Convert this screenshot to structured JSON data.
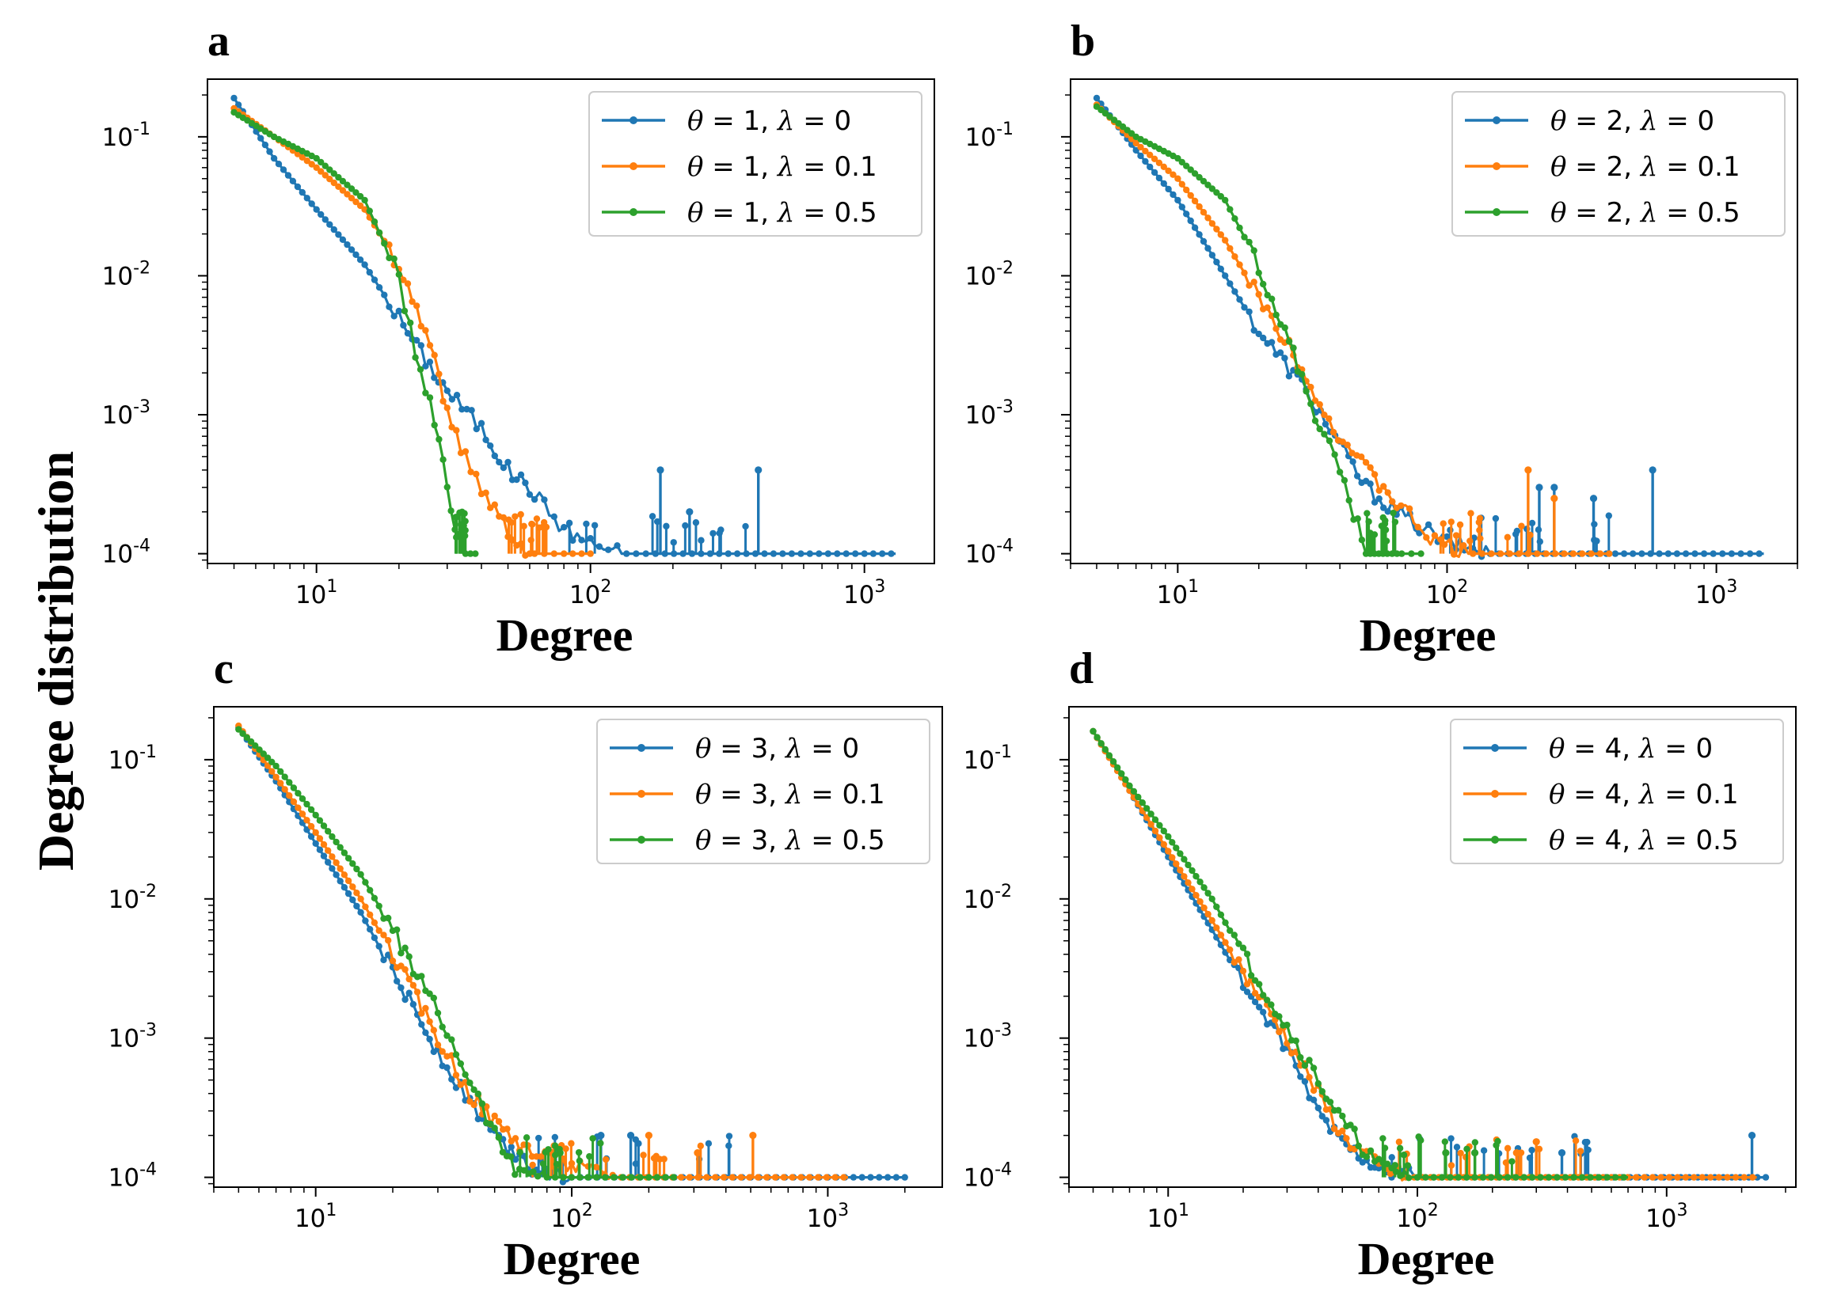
{
  "figure": {
    "ylabel": "Degree distribution",
    "colors": {
      "blue": "#1f77b4",
      "orange": "#ff7f0e",
      "green": "#2ca02c"
    }
  },
  "chart_data": [
    {
      "type": "line",
      "panel": "a",
      "xlabel": "Degree",
      "ylabel": "",
      "xscale": "log",
      "yscale": "log",
      "xlim": [
        4,
        1800
      ],
      "ylim": [
        8.5e-05,
        0.26
      ],
      "xticks": [
        "10^1",
        "10^2",
        "10^3"
      ],
      "yticks": [
        "10^-1",
        "10^-2",
        "10^-3",
        "10^-4"
      ],
      "legend_position": "top-right",
      "series": [
        {
          "theta": "1",
          "lambda": "0",
          "color": "#1f77b4",
          "points": [
            [
              5,
              0.19
            ],
            [
              7,
              0.07
            ],
            [
              10,
              0.03
            ],
            [
              15,
              0.012
            ],
            [
              20,
              0.005
            ],
            [
              25,
              0.0025
            ],
            [
              30,
              0.0015
            ],
            [
              40,
              0.0008
            ],
            [
              50,
              0.0004
            ],
            [
              60,
              0.0003
            ],
            [
              80,
              0.00015
            ],
            [
              100,
              0.00012
            ],
            [
              130,
              0.0001
            ],
            [
              180,
              0.0001
            ],
            [
              400,
              0.0001
            ],
            [
              1000,
              0.0001
            ],
            [
              1300,
              0.0001
            ]
          ],
          "spikes": [
            [
              180,
              0.0004
            ],
            [
              410,
              0.0004
            ],
            [
              230,
              0.0002
            ]
          ]
        },
        {
          "theta": "1",
          "lambda": "0.1",
          "color": "#ff7f0e",
          "points": [
            [
              5,
              0.16
            ],
            [
              7,
              0.1
            ],
            [
              10,
              0.06
            ],
            [
              15,
              0.03
            ],
            [
              20,
              0.012
            ],
            [
              25,
              0.004
            ],
            [
              28,
              0.002
            ],
            [
              30,
              0.001
            ],
            [
              35,
              0.0005
            ],
            [
              40,
              0.0003
            ],
            [
              50,
              0.00015
            ],
            [
              60,
              0.0001
            ],
            [
              80,
              0.0001
            ],
            [
              100,
              0.0001
            ]
          ],
          "spikes": []
        },
        {
          "theta": "1",
          "lambda": "0.5",
          "color": "#2ca02c",
          "points": [
            [
              5,
              0.15
            ],
            [
              7,
              0.1
            ],
            [
              10,
              0.07
            ],
            [
              15,
              0.035
            ],
            [
              20,
              0.01
            ],
            [
              22,
              0.004
            ],
            [
              25,
              0.0015
            ],
            [
              28,
              0.0007
            ],
            [
              30,
              0.0003
            ],
            [
              32,
              0.00015
            ],
            [
              35,
              0.0001
            ],
            [
              38,
              0.0001
            ]
          ],
          "spikes": []
        }
      ]
    },
    {
      "type": "line",
      "panel": "b",
      "xlabel": "Degree",
      "ylabel": "",
      "xscale": "log",
      "yscale": "log",
      "xlim": [
        4,
        2000
      ],
      "ylim": [
        8.5e-05,
        0.26
      ],
      "xticks": [
        "10^1",
        "10^2",
        "10^3"
      ],
      "yticks": [
        "10^-1",
        "10^-2",
        "10^-3",
        "10^-4"
      ],
      "legend_position": "top-right",
      "series": [
        {
          "theta": "2",
          "lambda": "0",
          "color": "#1f77b4",
          "points": [
            [
              5,
              0.19
            ],
            [
              7,
              0.08
            ],
            [
              10,
              0.035
            ],
            [
              15,
              0.01
            ],
            [
              20,
              0.004
            ],
            [
              30,
              0.0015
            ],
            [
              40,
              0.0006
            ],
            [
              50,
              0.0003
            ],
            [
              70,
              0.00018
            ],
            [
              100,
              0.00012
            ],
            [
              150,
              0.0001
            ],
            [
              300,
              0.0001
            ],
            [
              800,
              0.0001
            ],
            [
              1500,
              0.0001
            ]
          ],
          "spikes": [
            [
              580,
              0.0004
            ],
            [
              350,
              0.00025
            ],
            [
              250,
              0.0003
            ],
            [
              220,
              0.0003
            ]
          ]
        },
        {
          "theta": "2",
          "lambda": "0.1",
          "color": "#ff7f0e",
          "points": [
            [
              5,
              0.17
            ],
            [
              7,
              0.09
            ],
            [
              10,
              0.05
            ],
            [
              15,
              0.018
            ],
            [
              20,
              0.007
            ],
            [
              30,
              0.002
            ],
            [
              35,
              0.001
            ],
            [
              50,
              0.0004
            ],
            [
              70,
              0.0002
            ],
            [
              90,
              0.00012
            ],
            [
              120,
              0.0001
            ],
            [
              200,
              0.0001
            ],
            [
              400,
              0.0001
            ]
          ],
          "spikes": [
            [
              200,
              0.0004
            ],
            [
              250,
              0.00025
            ]
          ]
        },
        {
          "theta": "2",
          "lambda": "0.5",
          "color": "#2ca02c",
          "points": [
            [
              5,
              0.165
            ],
            [
              7,
              0.1
            ],
            [
              10,
              0.07
            ],
            [
              15,
              0.035
            ],
            [
              20,
              0.012
            ],
            [
              25,
              0.004
            ],
            [
              30,
              0.0015
            ],
            [
              35,
              0.0007
            ],
            [
              40,
              0.0004
            ],
            [
              45,
              0.0002
            ],
            [
              50,
              0.0001
            ],
            [
              60,
              0.0001
            ],
            [
              80,
              0.0001
            ]
          ],
          "spikes": []
        }
      ]
    },
    {
      "type": "line",
      "panel": "c",
      "xlabel": "Degree",
      "ylabel": "",
      "xscale": "log",
      "yscale": "log",
      "xlim": [
        4,
        2800
      ],
      "ylim": [
        8.5e-05,
        0.24
      ],
      "xticks": [
        "10^1",
        "10^2",
        "10^3"
      ],
      "yticks": [
        "10^-1",
        "10^-2",
        "10^-3",
        "10^-4"
      ],
      "legend_position": "top-right",
      "series": [
        {
          "theta": "3",
          "lambda": "0",
          "color": "#1f77b4",
          "points": [
            [
              5,
              0.17
            ],
            [
              7,
              0.07
            ],
            [
              10,
              0.025
            ],
            [
              15,
              0.008
            ],
            [
              20,
              0.003
            ],
            [
              30,
              0.0008
            ],
            [
              40,
              0.00035
            ],
            [
              50,
              0.0002
            ],
            [
              70,
              0.00012
            ],
            [
              100,
              0.0001
            ],
            [
              200,
              0.0001
            ],
            [
              500,
              0.0001
            ],
            [
              1000,
              0.0001
            ],
            [
              2000,
              0.0001
            ]
          ],
          "spikes": [
            [
              130,
              0.0002
            ],
            [
              170,
              0.0002
            ]
          ]
        },
        {
          "theta": "3",
          "lambda": "0.1",
          "color": "#ff7f0e",
          "points": [
            [
              5,
              0.175
            ],
            [
              7,
              0.075
            ],
            [
              10,
              0.03
            ],
            [
              15,
              0.01
            ],
            [
              20,
              0.004
            ],
            [
              30,
              0.001
            ],
            [
              40,
              0.0004
            ],
            [
              50,
              0.00025
            ],
            [
              70,
              0.00015
            ],
            [
              100,
              0.00012
            ],
            [
              150,
              0.0001
            ],
            [
              300,
              0.0001
            ],
            [
              600,
              0.0001
            ],
            [
              1200,
              0.0001
            ]
          ],
          "spikes": [
            [
              510,
              0.0002
            ],
            [
              310,
              0.00015
            ],
            [
              200,
              0.0002
            ]
          ]
        },
        {
          "theta": "3",
          "lambda": "0.5",
          "color": "#2ca02c",
          "points": [
            [
              5,
              0.165
            ],
            [
              7,
              0.09
            ],
            [
              10,
              0.04
            ],
            [
              15,
              0.015
            ],
            [
              20,
              0.006
            ],
            [
              30,
              0.0015
            ],
            [
              40,
              0.0005
            ],
            [
              50,
              0.0002
            ],
            [
              60,
              0.00012
            ],
            [
              80,
              0.0001
            ],
            [
              120,
              0.0001
            ],
            [
              200,
              0.0001
            ],
            [
              250,
              0.0001
            ]
          ],
          "spikes": [
            [
              90,
              0.00015
            ]
          ]
        }
      ]
    },
    {
      "type": "line",
      "panel": "d",
      "xlabel": "Degree",
      "ylabel": "",
      "xscale": "log",
      "yscale": "log",
      "xlim": [
        4,
        3300
      ],
      "ylim": [
        8.5e-05,
        0.24
      ],
      "xticks": [
        "10^1",
        "10^2",
        "10^3"
      ],
      "yticks": [
        "10^-1",
        "10^-2",
        "10^-3",
        "10^-4"
      ],
      "legend_position": "top-right",
      "series": [
        {
          "theta": "4",
          "lambda": "0",
          "color": "#1f77b4",
          "points": [
            [
              5,
              0.16
            ],
            [
              7,
              0.06
            ],
            [
              10,
              0.02
            ],
            [
              15,
              0.006
            ],
            [
              20,
              0.0025
            ],
            [
              30,
              0.0008
            ],
            [
              40,
              0.0003
            ],
            [
              50,
              0.00018
            ],
            [
              70,
              0.00012
            ],
            [
              100,
              0.0001
            ],
            [
              300,
              0.0001
            ],
            [
              800,
              0.0001
            ],
            [
              1500,
              0.0001
            ],
            [
              2500,
              0.0001
            ]
          ],
          "spikes": [
            [
              2200,
              0.0002
            ],
            [
              380,
              0.00015
            ]
          ]
        },
        {
          "theta": "4",
          "lambda": "0.1",
          "color": "#ff7f0e",
          "points": [
            [
              5,
              0.16
            ],
            [
              7,
              0.06
            ],
            [
              10,
              0.022
            ],
            [
              15,
              0.007
            ],
            [
              20,
              0.003
            ],
            [
              30,
              0.001
            ],
            [
              40,
              0.0004
            ],
            [
              50,
              0.0002
            ],
            [
              70,
              0.00012
            ],
            [
              90,
              0.0001
            ],
            [
              200,
              0.0001
            ],
            [
              600,
              0.0001
            ],
            [
              1500,
              0.0001
            ],
            [
              2300,
              0.0001
            ]
          ],
          "spikes": [
            [
              300,
              0.00018
            ],
            [
              250,
              0.00015
            ]
          ]
        },
        {
          "theta": "4",
          "lambda": "0.5",
          "color": "#2ca02c",
          "points": [
            [
              5,
              0.16
            ],
            [
              7,
              0.065
            ],
            [
              10,
              0.028
            ],
            [
              15,
              0.01
            ],
            [
              20,
              0.004
            ],
            [
              30,
              0.0012
            ],
            [
              40,
              0.0005
            ],
            [
              50,
              0.00025
            ],
            [
              70,
              0.00012
            ],
            [
              100,
              0.0001
            ],
            [
              300,
              0.0001
            ],
            [
              700,
              0.0001
            ]
          ],
          "spikes": [
            [
              130,
              0.00015
            ],
            [
              170,
              0.00015
            ]
          ]
        }
      ]
    }
  ]
}
